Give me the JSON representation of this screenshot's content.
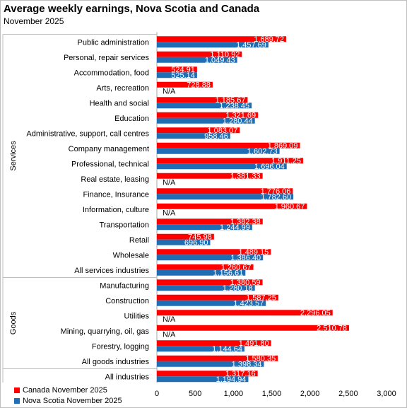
{
  "chart_data": {
    "type": "bar",
    "orientation": "horizontal",
    "title": "Average weekly earnings, Nova Scotia and Canada",
    "subtitle": "November 2025",
    "categories": [
      "Public administration",
      "Personal, repair services",
      "Accommodation, food",
      "Arts, recreation",
      "Health and social",
      "Education",
      "Administrative, support, call centres",
      "Company management",
      "Professional, technical",
      "Real estate, leasing",
      "Finance, Insurance",
      "Information, culture",
      "Transportation",
      "Retail",
      "Wholesale",
      "All services industries",
      "Manufacturing",
      "Construction",
      "Utilities",
      "Mining, quarrying, oil, gas",
      "Forestry, logging",
      "All goods industries",
      "All industries"
    ],
    "groups": [
      {
        "label": "Services",
        "from": 0,
        "to": 15
      },
      {
        "label": "Goods",
        "from": 16,
        "to": 21
      }
    ],
    "series": [
      {
        "name": "Canada November 2025",
        "color": "#ff0000",
        "values": [
          1689.72,
          1110.92,
          524.91,
          728.88,
          1185.67,
          1321.69,
          1083.07,
          1869.09,
          1911.25,
          1381.33,
          1776.06,
          1960.67,
          1382.38,
          745.98,
          1489.15,
          1260.67,
          1380.59,
          1587.25,
          2296.05,
          2510.78,
          1491.8,
          1580.35,
          1317.16
        ],
        "labels": [
          "1,689.72",
          "1,110.92",
          "524.91",
          "728.88",
          "1,185.67",
          "1,321.69",
          "1,083.07",
          "1,869.09",
          "1,911.25",
          "1,381.33",
          "1,776.06",
          "1,960.67",
          "1,382.38",
          "745.98",
          "1,489.15",
          "1,260.67",
          "1,380.59",
          "1,587.25",
          "2,296.05",
          "2,510.78",
          "1,491.80",
          "1,580.35",
          "1,317.16"
        ]
      },
      {
        "name": "Nova Scotia November 2025",
        "color": "#1f6eb4",
        "values": [
          1457.69,
          1049.43,
          525.14,
          null,
          1238.45,
          1280.44,
          958.46,
          1602.73,
          1696.04,
          null,
          1782.6,
          null,
          1244.99,
          696.9,
          1386.4,
          1156.61,
          1280.18,
          1423.57,
          null,
          null,
          1144.64,
          1398.34,
          1194.94
        ],
        "labels": [
          "1,457.69",
          "1,049.43",
          "525.14",
          "N/A",
          "1,238.45",
          "1,280.44",
          "958.46",
          "1,602.73",
          "1,696.04",
          "N/A",
          "1,782.60",
          "N/A",
          "1,244.99",
          "696.90",
          "1,386.40",
          "1,156.61",
          "1,280.18",
          "1,423.57",
          "N/A",
          "N/A",
          "1,144.64",
          "1,398.34",
          "1,194.94"
        ]
      }
    ],
    "xlim": [
      0,
      3000
    ],
    "xticks": [
      0,
      500,
      1000,
      1500,
      2000,
      2500,
      3000
    ],
    "xtick_labels": [
      "0",
      "500",
      "1,000",
      "1,500",
      "2,000",
      "2,500",
      "3,000"
    ],
    "grid": false,
    "legend_position": "bottom-left"
  }
}
